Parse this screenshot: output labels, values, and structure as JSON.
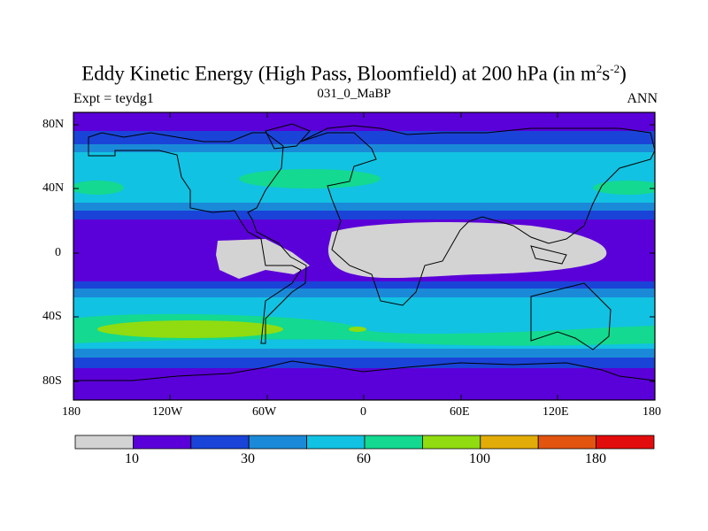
{
  "title": {
    "main": "Eddy Kinetic Energy (High Pass, Bloomfield) at 200 hPa (in m",
    "sup1": "2",
    "mid": "s",
    "sup2": "-2",
    "close": ")"
  },
  "subtitle": "031_0_MaBP",
  "left_label": "Expt = teydg1",
  "right_label": "ANN",
  "lat_labels": [
    "80N",
    "40N",
    "0",
    "40S",
    "80S"
  ],
  "lon_labels": [
    "180",
    "120W",
    "60W",
    "0",
    "60E",
    "120E",
    "180"
  ],
  "colorbar": {
    "colors": [
      "#d3d3d3",
      "#5a00d8",
      "#1a44d8",
      "#1a8ad8",
      "#12c2e2",
      "#14d990",
      "#90dc10",
      "#e2ac08",
      "#e25410",
      "#e20c0c"
    ],
    "labels": [
      "10",
      "30",
      "60",
      "100",
      "180"
    ]
  },
  "palette": {
    "low": "#d3d3d3",
    "purple": "#5a00d8",
    "blue": "#1a44d8",
    "mid_blue": "#1a8ad8",
    "cyan": "#12c2e2",
    "green": "#14d990",
    "yellow_green": "#90dc10"
  }
}
